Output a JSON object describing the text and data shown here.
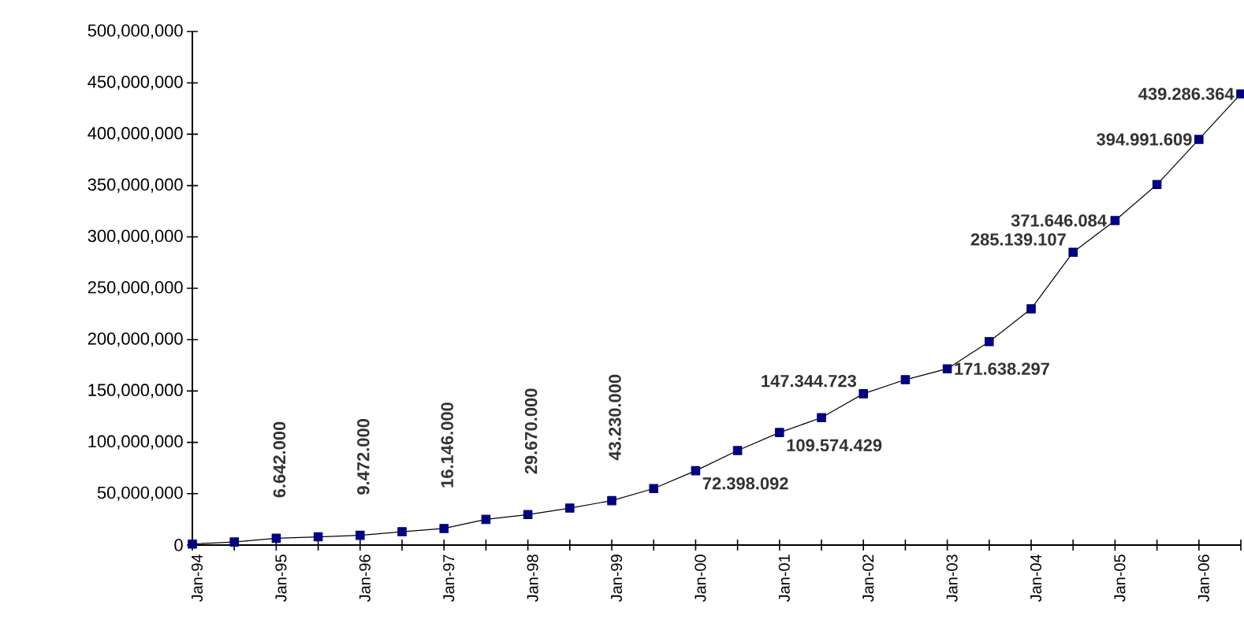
{
  "chart_data": {
    "type": "line",
    "color": "#000080",
    "marker": "square",
    "line_style": "solid",
    "x": [
      "1994-01",
      "1994-07",
      "1995-01",
      "1995-07",
      "1996-01",
      "1996-07",
      "1997-01",
      "1997-07",
      "1998-01",
      "1998-07",
      "1999-01",
      "1999-07",
      "2000-01",
      "2000-07",
      "2001-01",
      "2001-07",
      "2002-01",
      "2002-07",
      "2003-01",
      "2003-07",
      "2004-01",
      "2004-07",
      "2005-01",
      "2005-07",
      "2006-01",
      "2006-07"
    ],
    "values": [
      1000000,
      3000000,
      6642000,
      8000000,
      9472000,
      13000000,
      16146000,
      25000000,
      29670000,
      36000000,
      43230000,
      55000000,
      72398092,
      92000000,
      109574429,
      124000000,
      147344723,
      161000000,
      171638297,
      198000000,
      230000000,
      285139107,
      316000000,
      351000000,
      394991609,
      439286364
    ],
    "value_labels": [
      null,
      null,
      "6.642.000",
      null,
      "9.472.000",
      null,
      "16.146.000",
      null,
      "29.670.000",
      null,
      "43.230.000",
      null,
      "72.398.092",
      null,
      "109.574.429",
      null,
      "147.344.723",
      null,
      "171.638.297",
      null,
      null,
      "285.139.107",
      null,
      null,
      "394.991.609",
      "439.286.364"
    ],
    "annotations": [
      {
        "text": "371.646.084",
        "x": "2005-01",
        "y": 316000000
      }
    ],
    "xlim": [
      "1994-01",
      "2006-07"
    ],
    "xticks": [
      {
        "value": "1994-01",
        "label": "Jan-94"
      },
      {
        "value": "1994-07",
        "label": null
      },
      {
        "value": "1995-01",
        "label": "Jan-95"
      },
      {
        "value": "1995-07",
        "label": null
      },
      {
        "value": "1996-01",
        "label": "Jan-96"
      },
      {
        "value": "1996-07",
        "label": null
      },
      {
        "value": "1997-01",
        "label": "Jan-97"
      },
      {
        "value": "1997-07",
        "label": null
      },
      {
        "value": "1998-01",
        "label": "Jan-98"
      },
      {
        "value": "1998-07",
        "label": null
      },
      {
        "value": "1999-01",
        "label": "Jan-99"
      },
      {
        "value": "1999-07",
        "label": null
      },
      {
        "value": "2000-01",
        "label": "Jan-00"
      },
      {
        "value": "2000-07",
        "label": null
      },
      {
        "value": "2001-01",
        "label": "Jan-01"
      },
      {
        "value": "2001-07",
        "label": null
      },
      {
        "value": "2002-01",
        "label": "Jan-02"
      },
      {
        "value": "2002-07",
        "label": null
      },
      {
        "value": "2003-01",
        "label": "Jan-03"
      },
      {
        "value": "2003-07",
        "label": null
      },
      {
        "value": "2004-01",
        "label": "Jan-04"
      },
      {
        "value": "2004-07",
        "label": null
      },
      {
        "value": "2005-01",
        "label": "Jan-05"
      },
      {
        "value": "2005-07",
        "label": null
      },
      {
        "value": "2006-01",
        "label": "Jan-06"
      },
      {
        "value": "2006-07",
        "label": null
      }
    ],
    "ylim": [
      0,
      500000000
    ],
    "yticks": [
      0,
      {
        "value": 50000000,
        "label": "50,000,000"
      },
      {
        "value": 100000000,
        "label": "100,000,000"
      },
      {
        "value": 150000000,
        "label": "150,000,000"
      },
      {
        "value": 200000000,
        "label": "200,000,000"
      },
      {
        "value": 250000000,
        "label": "250,000,000"
      },
      {
        "value": 300000000,
        "label": "300,000,000"
      },
      {
        "value": 350000000,
        "label": "350,000,000"
      },
      {
        "value": 400000000,
        "label": "400,000,000"
      },
      {
        "value": 450000000,
        "label": "450,000,000"
      },
      {
        "value": 500000000,
        "label": "500,000,000"
      }
    ]
  }
}
